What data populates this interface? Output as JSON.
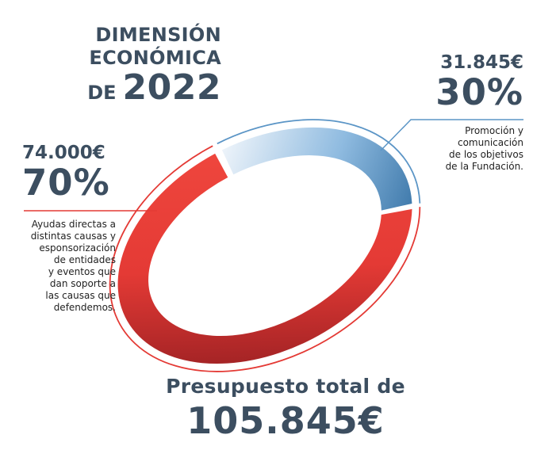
{
  "title": {
    "line1": "DIMENSIÓN",
    "line2": "ECONÓMICA",
    "line3_prefix": "DE",
    "year": "2022"
  },
  "total": {
    "label": "Presupuesto total de",
    "value": "105.845€"
  },
  "chart_data": {
    "type": "pie",
    "title": "",
    "slices": [
      {
        "amount": "74.000€",
        "percent": "70%",
        "value": 70,
        "color": "#e43a35",
        "description": [
          "Ayudas directas a",
          "distintas causas y",
          "esponsorización",
          "de entidades",
          "y eventos que",
          "dan soporte a",
          "las causas que",
          "defendemos."
        ]
      },
      {
        "amount": "31.845€",
        "percent": "30%",
        "value": 30,
        "color": "#5b95c6",
        "description": [
          "Promoción y",
          "comunicación",
          "de los objetivos",
          "de la Fundación."
        ]
      }
    ]
  },
  "colors": {
    "text_dark": "#3c4e60",
    "red": "#e43a35",
    "red_dark": "#9e1f22",
    "blue": "#5b95c6",
    "blue_light": "#dde9f4"
  }
}
